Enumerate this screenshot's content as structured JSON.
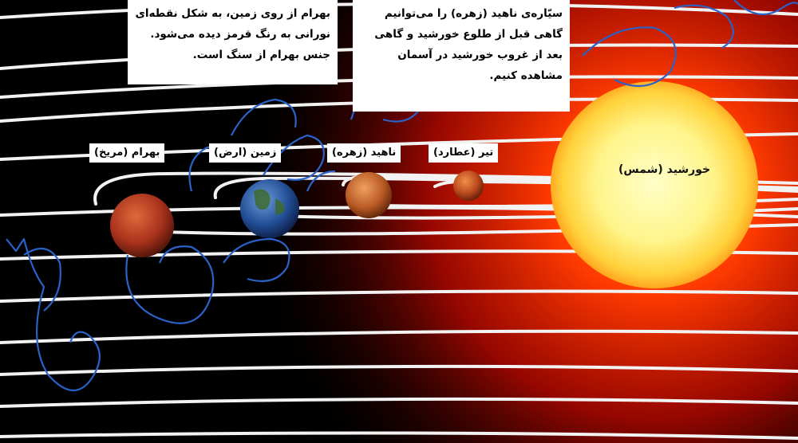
{
  "info_boxes": {
    "mars_text": {
      "lines": [
        "بهرام از روی زمین، به شکل نقطه‌ای",
        "نورانی به رنگ قرمز دیده می‌شود.",
        "جنس بهرام از سنگ است."
      ]
    },
    "venus_text": {
      "lines": [
        "سیّاره‌ی ناهید (زهره) را می‌توانیم",
        "گاهی قبل از طلوع خورشید و گاهی",
        "بعد از غروب خورشید در آسمان",
        "مشاهده کنیم."
      ]
    }
  },
  "labels": {
    "sun": "خورشید (شمس)",
    "mercury": "تیر (عطارد)",
    "venus": "ناهید (زهره)",
    "earth": "زمین (ارض)",
    "mars": "بهرام (مریخ)"
  },
  "colors": {
    "background": "#000000",
    "sun_core": "#ffffa8",
    "sun_glow": "#ff2a00",
    "orbit": "#ffffff",
    "watermark_stroke": "#2a62c8"
  }
}
